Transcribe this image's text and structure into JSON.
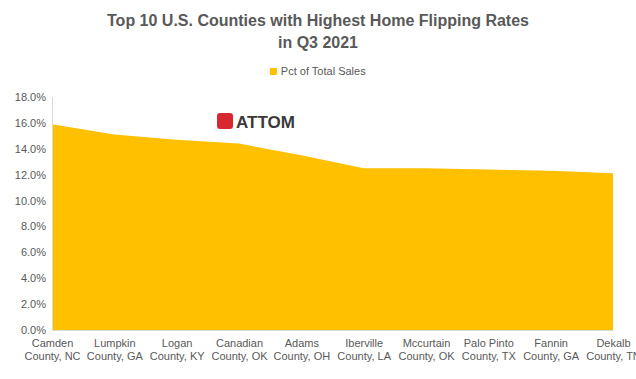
{
  "chart_data": {
    "type": "area",
    "title": "Top 10 U.S. Counties with Highest Home Flipping Rates",
    "subtitle": "in Q3 2021",
    "annotations": [
      "ATTOM"
    ],
    "categories": [
      "Camden County, NC",
      "Lumpkin County, GA",
      "Logan County, KY",
      "Canadian County, OK",
      "Adams County, OH",
      "Iberville County, LA",
      "Mccurtain County, OK",
      "Palo Pinto County, TX",
      "Fannin County, GA",
      "Dekalb County, TN"
    ],
    "series": [
      {
        "name": "Pct of Total Sales",
        "color": "#ffc000",
        "values": [
          15.9,
          15.1,
          14.7,
          14.4,
          13.5,
          12.5,
          12.5,
          12.4,
          12.3,
          12.1
        ]
      }
    ],
    "ylim": [
      0,
      18
    ],
    "yticks": [
      {
        "value": 0,
        "label": "0.0%"
      },
      {
        "value": 2,
        "label": "2.0%"
      },
      {
        "value": 4,
        "label": "4.0%"
      },
      {
        "value": 6,
        "label": "6.0%"
      },
      {
        "value": 8,
        "label": "8.0%"
      },
      {
        "value": 10,
        "label": "10.0%"
      },
      {
        "value": 12,
        "label": "12.0%"
      },
      {
        "value": 14,
        "label": "14.0%"
      },
      {
        "value": 16,
        "label": "16.0%"
      },
      {
        "value": 18,
        "label": "18.0%"
      }
    ],
    "grid": false,
    "legend": "top"
  }
}
